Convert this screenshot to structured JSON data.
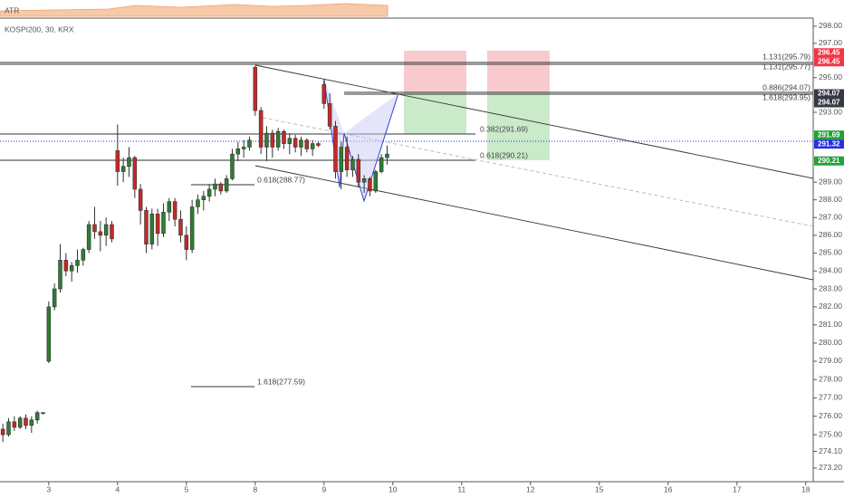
{
  "chart_data": {
    "type": "candlestick",
    "title": "KOSPI200, 30, KRX",
    "indicator": "ATR",
    "log_scale": true,
    "up_color": "#2e7d32",
    "down_color": "#c62828",
    "x": [
      0,
      1,
      2,
      3,
      4,
      5,
      6,
      7,
      8,
      9,
      10,
      11,
      12,
      13,
      14,
      15,
      16,
      17,
      18,
      19,
      20,
      21,
      22,
      23,
      24,
      25,
      26,
      27,
      28,
      29,
      30,
      31,
      32,
      33,
      34,
      35,
      36,
      37,
      38,
      39,
      40,
      41,
      42,
      43,
      44,
      45,
      46,
      47,
      48,
      49,
      50,
      51,
      52,
      53,
      54,
      55,
      56,
      57,
      58,
      59,
      60,
      61,
      62,
      63,
      64,
      65,
      66,
      67
    ],
    "open": [
      275.3,
      275.0,
      275.7,
      275.4,
      275.9,
      275.5,
      275.8,
      276.2,
      279.0,
      282.0,
      283.0,
      284.6,
      284.0,
      284.3,
      284.6,
      285.2,
      286.6,
      286.2,
      286.0,
      286.6,
      290.8,
      289.6,
      289.9,
      290.4,
      288.6,
      287.4,
      285.5,
      287.2,
      286.1,
      287.3,
      287.9,
      286.9,
      286.0,
      285.2,
      287.6,
      288.0,
      288.2,
      288.6,
      288.9,
      288.5,
      289.2,
      290.6,
      290.9,
      291.0,
      295.6,
      293.1,
      291.0,
      291.8,
      291.0,
      291.9,
      291.2,
      291.5,
      291.0,
      291.4,
      290.9,
      291.2,
      294.6,
      293.5,
      292.2,
      289.6,
      291.0,
      289.7,
      290.3,
      289.0,
      289.2,
      288.5,
      289.6,
      290.4
    ],
    "high": [
      275.6,
      275.9,
      276.0,
      276.0,
      276.1,
      276.0,
      276.3,
      276.2,
      282.3,
      283.3,
      285.5,
      285.0,
      284.5,
      285.2,
      285.3,
      286.8,
      287.6,
      286.8,
      287.0,
      286.8,
      292.3,
      290.4,
      291.0,
      290.5,
      288.9,
      287.6,
      287.5,
      287.5,
      287.8,
      288.1,
      288.1,
      287.4,
      286.5,
      288.0,
      288.3,
      288.5,
      288.9,
      289.2,
      289.0,
      289.4,
      290.9,
      291.3,
      291.4,
      291.6,
      295.7,
      293.3,
      292.2,
      292.0,
      292.1,
      292.0,
      291.8,
      291.7,
      291.6,
      291.5,
      291.4,
      291.3,
      294.9,
      294.1,
      292.5,
      291.3,
      291.6,
      290.5,
      290.6,
      289.4,
      289.3,
      289.7,
      290.6,
      291.1
    ],
    "low": [
      274.6,
      274.9,
      275.2,
      275.3,
      275.3,
      275.1,
      275.6,
      276.1,
      278.9,
      281.8,
      282.8,
      283.7,
      283.4,
      283.9,
      284.3,
      285.0,
      285.8,
      285.1,
      285.4,
      285.6,
      288.8,
      289.0,
      289.3,
      288.1,
      286.6,
      285.0,
      285.2,
      285.4,
      285.9,
      286.8,
      286.5,
      285.6,
      284.6,
      285.0,
      287.2,
      287.4,
      287.9,
      288.2,
      288.3,
      288.4,
      289.1,
      290.2,
      290.4,
      290.8,
      292.8,
      290.6,
      290.2,
      290.4,
      290.8,
      290.9,
      290.6,
      290.7,
      290.5,
      290.7,
      290.5,
      291.0,
      293.2,
      292.0,
      289.2,
      288.6,
      289.3,
      289.3,
      288.7,
      288.4,
      288.2,
      288.4,
      289.5,
      290.0
    ],
    "close": [
      275.0,
      275.7,
      275.4,
      275.9,
      275.5,
      275.8,
      276.2,
      276.15,
      282.0,
      283.0,
      284.6,
      284.0,
      284.3,
      284.6,
      285.2,
      286.6,
      286.2,
      286.0,
      286.6,
      285.8,
      289.6,
      289.9,
      290.4,
      288.6,
      287.4,
      285.5,
      287.2,
      286.1,
      287.3,
      287.9,
      286.9,
      286.0,
      285.2,
      287.6,
      288.0,
      288.2,
      288.6,
      288.9,
      288.5,
      289.2,
      290.6,
      290.9,
      291.0,
      291.4,
      293.1,
      291.0,
      291.8,
      291.0,
      291.9,
      291.2,
      291.5,
      291.0,
      291.4,
      290.9,
      291.2,
      291.1,
      293.5,
      292.2,
      289.6,
      291.0,
      289.7,
      290.3,
      289.0,
      289.2,
      288.5,
      289.6,
      290.4,
      290.6
    ],
    "xlim": [
      -0.5,
      141.3
    ],
    "xticks": [
      {
        "value": 8,
        "label": "3"
      },
      {
        "value": 20,
        "label": "4"
      },
      {
        "value": 32,
        "label": "5"
      },
      {
        "value": 44,
        "label": "8"
      },
      {
        "value": 56,
        "label": "9"
      },
      {
        "value": 68,
        "label": "10"
      },
      {
        "value": 80,
        "label": "11"
      },
      {
        "value": 92,
        "label": "12"
      },
      {
        "value": 104,
        "label": "15"
      },
      {
        "value": 116,
        "label": "16"
      },
      {
        "value": 128,
        "label": "17"
      },
      {
        "value": 140,
        "label": "18"
      }
    ],
    "ylim": [
      272.47,
      298.37
    ],
    "yticks": [
      {
        "value": 298,
        "label": "298.00"
      },
      {
        "value": 297,
        "label": "297.00"
      },
      {
        "value": 295,
        "label": "295.00"
      },
      {
        "value": 293,
        "label": "293.00"
      },
      {
        "value": 289,
        "label": "289.00"
      },
      {
        "value": 288,
        "label": "288.00"
      },
      {
        "value": 287,
        "label": "287.00"
      },
      {
        "value": 286,
        "label": "286.00"
      },
      {
        "value": 285,
        "label": "285.00"
      },
      {
        "value": 284,
        "label": "284.00"
      },
      {
        "value": 283,
        "label": "283.00"
      },
      {
        "value": 282,
        "label": "282.00"
      },
      {
        "value": 281,
        "label": "281.00"
      },
      {
        "value": 280,
        "label": "280.00"
      },
      {
        "value": 279,
        "label": "279.00"
      },
      {
        "value": 278,
        "label": "278.00"
      },
      {
        "value": 277,
        "label": "277.00"
      },
      {
        "value": 276,
        "label": "276.00"
      },
      {
        "value": 275,
        "label": "275.00"
      },
      {
        "value": 274.1,
        "label": "274.10"
      },
      {
        "value": 273.2,
        "label": "273.20"
      }
    ],
    "annotations": [
      "1.131(295.79)",
      "1.131(295.77)",
      "0.886(294.07)",
      "1.618(293.95)",
      "0.382(291.69)",
      "0.618(290.21)",
      "0.618(288.77)",
      "1.618(277.59)"
    ],
    "price_tags": [
      296.45,
      296.45,
      294.07,
      294.07,
      291.69,
      291.32,
      290.21
    ],
    "price_tag_colors": [
      "#f23645",
      "#f23645",
      "#363a45",
      "#363a45",
      "#22a33a",
      "#2a2ee0",
      "#22a33a"
    ]
  }
}
